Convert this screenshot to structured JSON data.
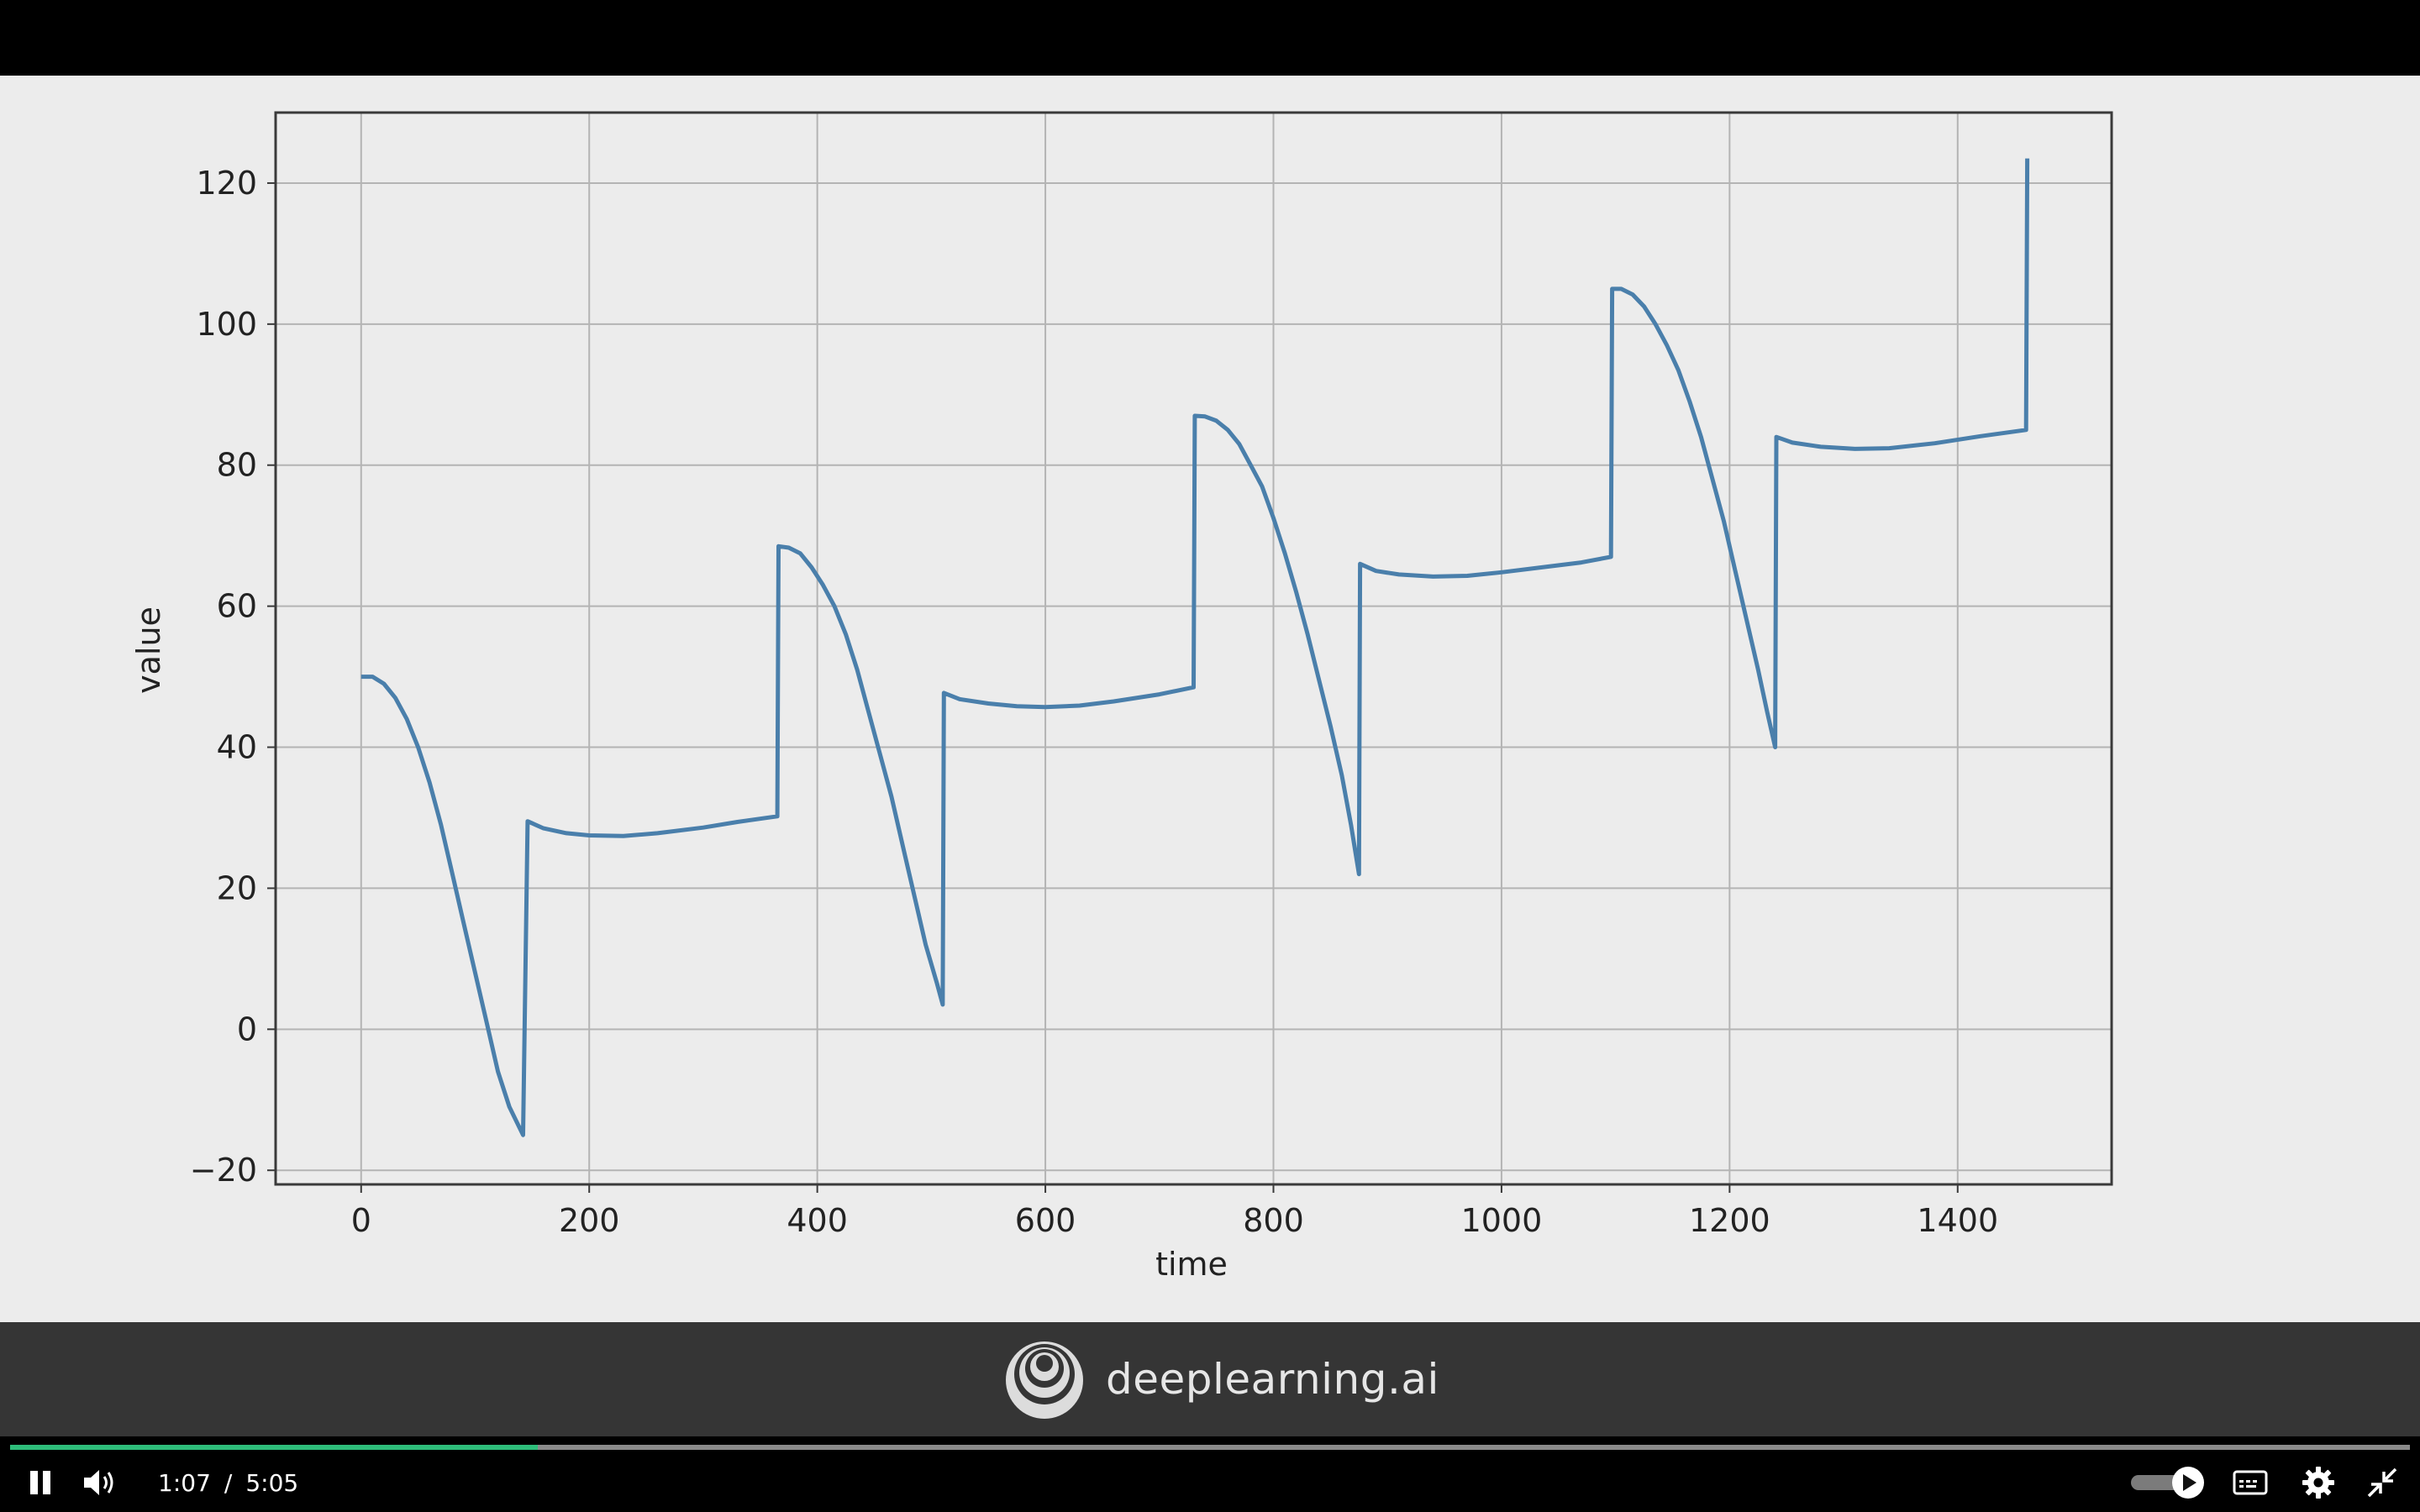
{
  "player": {
    "current_time": "1:07",
    "separator": "/",
    "duration": "5:05",
    "progress_fraction": 0.22
  },
  "brand": {
    "name": "deeplearning.ai"
  },
  "colors": {
    "line": "#4a7fab",
    "progress": "#2ebd7a",
    "frame_bg": "#ececec",
    "brand_bar": "#353535"
  },
  "icons": [
    "pause-icon",
    "volume-icon",
    "autoplay-toggle-icon",
    "captions-icon",
    "settings-gear-icon",
    "exit-fullscreen-icon",
    "deeplearning-logo-icon"
  ],
  "chart_data": {
    "type": "line",
    "title": "",
    "xlabel": "time",
    "ylabel": "value",
    "xlim": [
      -75,
      1535
    ],
    "ylim": [
      -22,
      130
    ],
    "xticks": [
      0,
      200,
      400,
      600,
      800,
      1000,
      1200,
      1400
    ],
    "yticks": [
      -20,
      0,
      20,
      40,
      60,
      80,
      100,
      120
    ],
    "grid": true,
    "series": [
      {
        "name": "",
        "points": [
          [
            0,
            50
          ],
          [
            10,
            50
          ],
          [
            20,
            49
          ],
          [
            30,
            47
          ],
          [
            40,
            44
          ],
          [
            50,
            40
          ],
          [
            60,
            35
          ],
          [
            70,
            29
          ],
          [
            80,
            22
          ],
          [
            90,
            15
          ],
          [
            100,
            8
          ],
          [
            110,
            1
          ],
          [
            120,
            -6
          ],
          [
            130,
            -11
          ],
          [
            142,
            -15
          ],
          [
            146,
            29.5
          ],
          [
            160,
            28.5
          ],
          [
            180,
            27.8
          ],
          [
            200,
            27.5
          ],
          [
            230,
            27.4
          ],
          [
            260,
            27.8
          ],
          [
            300,
            28.6
          ],
          [
            330,
            29.4
          ],
          [
            365,
            30.2
          ],
          [
            366,
            68.5
          ],
          [
            375,
            68.3
          ],
          [
            385,
            67.5
          ],
          [
            395,
            65.5
          ],
          [
            405,
            63
          ],
          [
            415,
            60
          ],
          [
            425,
            56
          ],
          [
            435,
            51
          ],
          [
            445,
            45
          ],
          [
            455,
            39
          ],
          [
            465,
            33
          ],
          [
            475,
            26
          ],
          [
            485,
            19
          ],
          [
            495,
            12
          ],
          [
            505,
            6.5
          ],
          [
            510,
            3.5
          ],
          [
            511,
            47.7
          ],
          [
            525,
            46.8
          ],
          [
            550,
            46.2
          ],
          [
            575,
            45.8
          ],
          [
            600,
            45.7
          ],
          [
            630,
            45.9
          ],
          [
            660,
            46.5
          ],
          [
            700,
            47.5
          ],
          [
            730,
            48.5
          ],
          [
            731,
            87
          ],
          [
            740,
            86.9
          ],
          [
            750,
            86.3
          ],
          [
            760,
            85
          ],
          [
            770,
            83
          ],
          [
            780,
            80
          ],
          [
            790,
            77
          ],
          [
            800,
            72.5
          ],
          [
            810,
            67.5
          ],
          [
            820,
            62
          ],
          [
            830,
            56
          ],
          [
            840,
            49.5
          ],
          [
            850,
            43
          ],
          [
            860,
            36
          ],
          [
            868,
            29
          ],
          [
            875,
            22
          ],
          [
            876,
            66
          ],
          [
            890,
            65
          ],
          [
            910,
            64.5
          ],
          [
            940,
            64.2
          ],
          [
            970,
            64.3
          ],
          [
            1000,
            64.8
          ],
          [
            1040,
            65.6
          ],
          [
            1070,
            66.2
          ],
          [
            1096,
            67
          ],
          [
            1097,
            105
          ],
          [
            1105,
            105
          ],
          [
            1115,
            104.2
          ],
          [
            1125,
            102.5
          ],
          [
            1135,
            100
          ],
          [
            1145,
            97
          ],
          [
            1155,
            93.5
          ],
          [
            1165,
            89
          ],
          [
            1175,
            84
          ],
          [
            1185,
            78
          ],
          [
            1195,
            72
          ],
          [
            1205,
            65
          ],
          [
            1215,
            58
          ],
          [
            1225,
            51
          ],
          [
            1233,
            45
          ],
          [
            1240,
            40
          ],
          [
            1241,
            84
          ],
          [
            1255,
            83.2
          ],
          [
            1280,
            82.6
          ],
          [
            1310,
            82.3
          ],
          [
            1340,
            82.4
          ],
          [
            1380,
            83.1
          ],
          [
            1420,
            84.1
          ],
          [
            1460,
            85
          ],
          [
            1461,
            123.5
          ]
        ]
      }
    ]
  }
}
